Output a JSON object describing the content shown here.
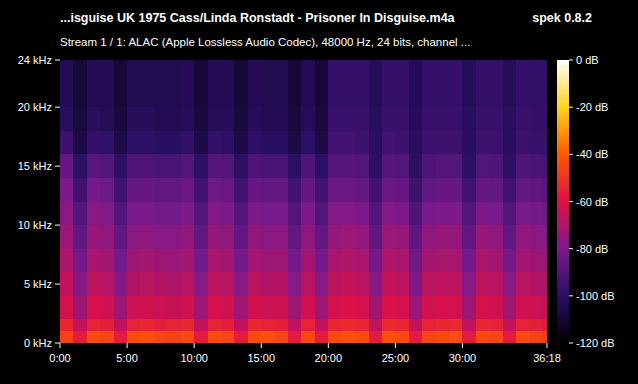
{
  "chart_data": {
    "type": "heatmap",
    "title": "...isguise UK 1975 Cass/Linda Ronstadt - Prisoner In Disguise.m4a",
    "app_label": "spek 0.8.2",
    "subtitle": "Stream 1 / 1: ALAC (Apple Lossless Audio Codec), 48000 Hz, 24 bits, channel ...",
    "xlim": [
      0,
      2178
    ],
    "xticks": [
      {
        "value": 0,
        "label": "0:00"
      },
      {
        "value": 300,
        "label": "5:00"
      },
      {
        "value": 600,
        "label": "10:00"
      },
      {
        "value": 900,
        "label": "15:00"
      },
      {
        "value": 1200,
        "label": "20:00"
      },
      {
        "value": 1500,
        "label": "25:00"
      },
      {
        "value": 1800,
        "label": "30:00"
      },
      {
        "value": 2178,
        "label": "36:18"
      }
    ],
    "ylim": [
      0,
      24
    ],
    "yticks": [
      {
        "value": 0,
        "label": "0 kHz"
      },
      {
        "value": 5,
        "label": "5 kHz"
      },
      {
        "value": 10,
        "label": "10 kHz"
      },
      {
        "value": 15,
        "label": "15 kHz"
      },
      {
        "value": 20,
        "label": "20 kHz"
      },
      {
        "value": 24,
        "label": "24 kHz"
      }
    ],
    "colorbar_lim": [
      -120,
      0
    ],
    "colorbar_ticks": [
      {
        "value": 0,
        "label": "0 dB"
      },
      {
        "value": -20,
        "label": "-20 dB"
      },
      {
        "value": -40,
        "label": "-40 dB"
      },
      {
        "value": -60,
        "label": "-60 dB"
      },
      {
        "value": -80,
        "label": "-80 dB"
      },
      {
        "value": -100,
        "label": "-100 dB"
      },
      {
        "value": -120,
        "label": "-120 dB"
      }
    ],
    "x_edges": [
      0,
      60,
      120,
      180,
      240,
      300,
      360,
      420,
      480,
      540,
      600,
      660,
      720,
      780,
      840,
      900,
      960,
      1020,
      1080,
      1140,
      1200,
      1260,
      1320,
      1380,
      1440,
      1500,
      1560,
      1620,
      1680,
      1740,
      1800,
      1860,
      1920,
      1980,
      2040,
      2100,
      2160,
      2178
    ],
    "y_edges": [
      0,
      1,
      2,
      4,
      6,
      8,
      10,
      12,
      14,
      16,
      18,
      20,
      24
    ],
    "cells": [
      [
        -46,
        -57,
        -44,
        -45,
        -57,
        -44,
        -43,
        -45,
        -46,
        -44,
        -57,
        -44,
        -45,
        -57,
        -44,
        -43,
        -45,
        -57,
        -44,
        -57,
        -44,
        -43,
        -44,
        -57,
        -43,
        -44,
        -57,
        -45,
        -44,
        -43,
        -57,
        -44,
        -45,
        -57,
        -44,
        -46,
        -47
      ],
      [
        -54,
        -66,
        -55,
        -56,
        -66,
        -55,
        -54,
        -56,
        -55,
        -54,
        -66,
        -55,
        -56,
        -66,
        -54,
        -55,
        -56,
        -66,
        -55,
        -66,
        -54,
        -53,
        -54,
        -66,
        -53,
        -54,
        -66,
        -55,
        -54,
        -53,
        -66,
        -54,
        -55,
        -66,
        -55,
        -56,
        -57
      ],
      [
        -62,
        -73,
        -62,
        -63,
        -73,
        -64,
        -63,
        -64,
        -65,
        -63,
        -73,
        -62,
        -63,
        -73,
        -63,
        -64,
        -64,
        -73,
        -63,
        -73,
        -62,
        -61,
        -62,
        -73,
        -61,
        -62,
        -74,
        -63,
        -62,
        -62,
        -73,
        -62,
        -63,
        -73,
        -63,
        -64,
        -65
      ],
      [
        -66,
        -78,
        -67,
        -68,
        -78,
        -69,
        -68,
        -69,
        -70,
        -68,
        -78,
        -67,
        -68,
        -78,
        -68,
        -69,
        -69,
        -78,
        -68,
        -78,
        -67,
        -66,
        -67,
        -78,
        -66,
        -67,
        -79,
        -68,
        -67,
        -67,
        -78,
        -67,
        -68,
        -78,
        -68,
        -69,
        -70
      ],
      [
        -70,
        -82,
        -71,
        -72,
        -82,
        -73,
        -72,
        -73,
        -74,
        -72,
        -82,
        -71,
        -72,
        -82,
        -72,
        -73,
        -73,
        -82,
        -72,
        -82,
        -71,
        -70,
        -71,
        -82,
        -70,
        -71,
        -83,
        -72,
        -71,
        -71,
        -82,
        -71,
        -72,
        -82,
        -72,
        -73,
        -74
      ],
      [
        -74,
        -86,
        -75,
        -76,
        -86,
        -77,
        -77,
        -78,
        -78,
        -76,
        -86,
        -75,
        -76,
        -86,
        -76,
        -77,
        -77,
        -86,
        -76,
        -86,
        -75,
        -74,
        -75,
        -86,
        -74,
        -75,
        -87,
        -76,
        -75,
        -75,
        -86,
        -75,
        -76,
        -86,
        -76,
        -77,
        -78
      ],
      [
        -77,
        -90,
        -78,
        -79,
        -90,
        -81,
        -81,
        -82,
        -82,
        -80,
        -90,
        -79,
        -80,
        -90,
        -80,
        -81,
        -81,
        -90,
        -80,
        -90,
        -79,
        -79,
        -80,
        -90,
        -79,
        -80,
        -91,
        -81,
        -80,
        -80,
        -90,
        -80,
        -81,
        -90,
        -81,
        -82,
        -83
      ],
      [
        -80,
        -94,
        -82,
        -83,
        -94,
        -85,
        -85,
        -86,
        -86,
        -84,
        -94,
        -83,
        -84,
        -94,
        -85,
        -86,
        -86,
        -94,
        -85,
        -94,
        -84,
        -84,
        -85,
        -94,
        -84,
        -85,
        -95,
        -86,
        -85,
        -85,
        -94,
        -85,
        -86,
        -94,
        -86,
        -87,
        -88
      ],
      [
        -85,
        -99,
        -88,
        -89,
        -99,
        -91,
        -91,
        -92,
        -92,
        -90,
        -99,
        -89,
        -90,
        -99,
        -91,
        -92,
        -92,
        -99,
        -91,
        -99,
        -89,
        -89,
        -90,
        -99,
        -89,
        -90,
        -99,
        -91,
        -90,
        -90,
        -99,
        -90,
        -91,
        -99,
        -91,
        -92,
        -93
      ],
      [
        -95,
        -106,
        -97,
        -98,
        -106,
        -99,
        -99,
        -100,
        -100,
        -98,
        -106,
        -98,
        -99,
        -106,
        -99,
        -100,
        -100,
        -106,
        -99,
        -106,
        -94,
        -94,
        -95,
        -100,
        -94,
        -95,
        -101,
        -95,
        -95,
        -95,
        -100,
        -95,
        -95,
        -100,
        -95,
        -96,
        -96
      ],
      [
        -101,
        -108,
        -101,
        -102,
        -108,
        -102,
        -102,
        -103,
        -103,
        -102,
        -108,
        -102,
        -102,
        -108,
        -102,
        -103,
        -103,
        -108,
        -102,
        -108,
        -96,
        -96,
        -96,
        -101,
        -96,
        -96,
        -102,
        -96,
        -96,
        -96,
        -101,
        -96,
        -96,
        -101,
        -96,
        -97,
        -97
      ],
      [
        -103,
        -109,
        -103,
        -103,
        -109,
        -104,
        -104,
        -104,
        -104,
        -103,
        -109,
        -103,
        -103,
        -109,
        -103,
        -104,
        -104,
        -109,
        -103,
        -109,
        -97,
        -97,
        -97,
        -102,
        -97,
        -97,
        -103,
        -97,
        -97,
        -97,
        -102,
        -97,
        -97,
        -102,
        -97,
        -98,
        -98
      ]
    ]
  }
}
